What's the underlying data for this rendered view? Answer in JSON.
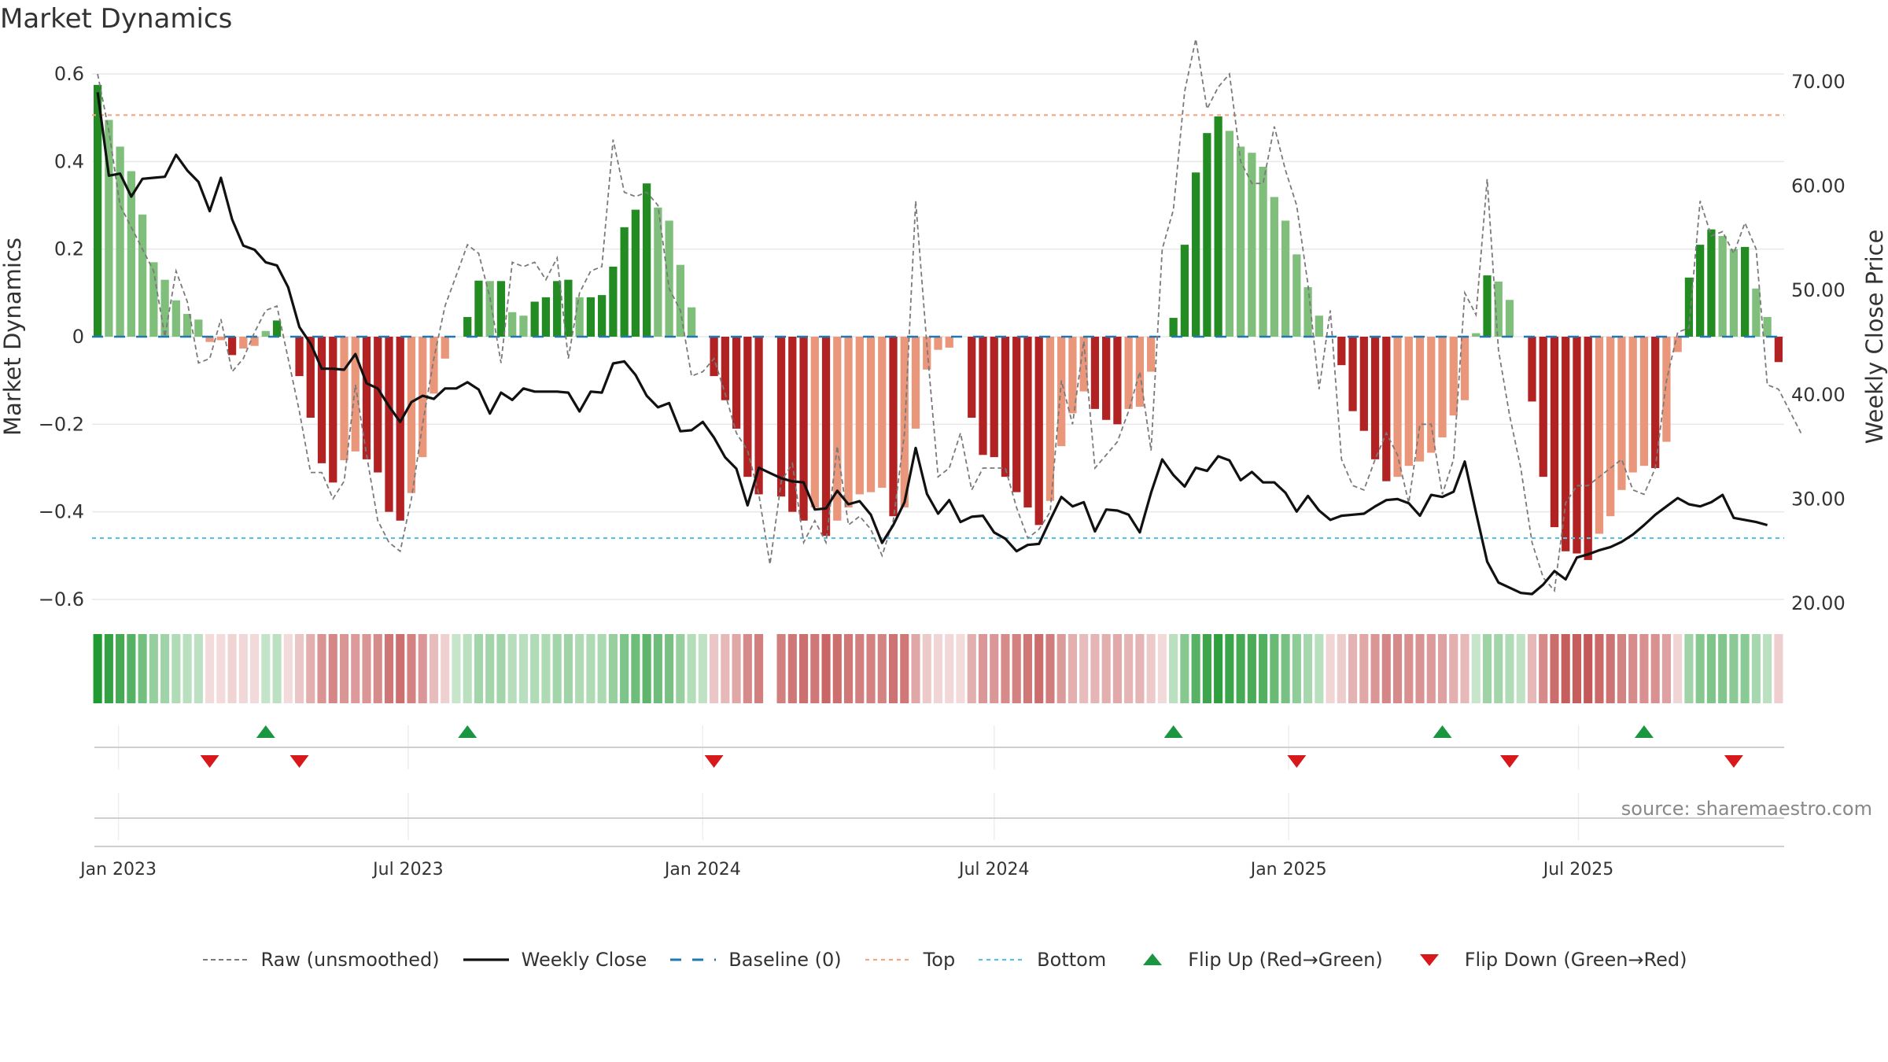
{
  "page": {
    "title": "Market Dynamics",
    "source": "source: sharemaestro.com"
  },
  "legend": [
    {
      "key": "raw",
      "label": "Raw (unsmoothed)"
    },
    {
      "key": "close",
      "label": "Weekly Close"
    },
    {
      "key": "baseline",
      "label": "Baseline (0)"
    },
    {
      "key": "top",
      "label": "Top"
    },
    {
      "key": "bottom",
      "label": "Bottom"
    },
    {
      "key": "flip_up",
      "label": "Flip Up (Red→Green)"
    },
    {
      "key": "flip_down",
      "label": "Flip Down (Green→Red)"
    }
  ],
  "colors": {
    "green_dark": "#228b22",
    "green_light": "#7fbf7b",
    "red_dark": "#b22222",
    "red_light": "#e9967a",
    "close_line": "#111111",
    "raw_line": "#7a7a7a",
    "baseline": "#1f77b4",
    "top": "#f4a582",
    "bottom": "#5bc0de",
    "flip_up": "#1a9641",
    "flip_down": "#d7191c"
  },
  "chart_data": {
    "type": "bar",
    "title": "Market Dynamics",
    "ylabel": "Market Dynamics",
    "y2label": "Weekly Close Price",
    "ylim": [
      -0.6,
      0.6
    ],
    "y2lim": [
      20,
      70
    ],
    "y_ticks": [
      "0.6",
      "0.4",
      "0.2",
      "0",
      "−0.2",
      "−0.4",
      "−0.6"
    ],
    "y2_ticks": [
      "70.00",
      "60.00",
      "50.00",
      "40.00",
      "30.00",
      "20.00"
    ],
    "x_ticks": [
      "Jan 2023",
      "Jul 2023",
      "Jan 2024",
      "Jul 2024",
      "Jan 2025",
      "Jul 2025"
    ],
    "x_start": "2022-12-19",
    "top_level": 0.506,
    "bottom_level": -0.46,
    "baseline": 0,
    "grid": true,
    "legend_position": "bottom",
    "dynamics": [
      0.575,
      0.495,
      0.434,
      0.378,
      0.279,
      0.17,
      0.13,
      0.083,
      0.052,
      0.039,
      -0.012,
      -0.008,
      -0.042,
      -0.027,
      -0.021,
      0.013,
      0.037,
      0.0,
      -0.09,
      -0.185,
      -0.289,
      -0.333,
      -0.282,
      -0.262,
      -0.28,
      -0.31,
      -0.4,
      -0.42,
      -0.357,
      -0.275,
      -0.13,
      -0.05,
      0.0,
      0.045,
      0.128,
      0.127,
      0.127,
      0.056,
      0.048,
      0.08,
      0.09,
      0.127,
      0.13,
      0.09,
      0.09,
      0.095,
      0.16,
      0.25,
      0.29,
      0.35,
      0.295,
      0.265,
      0.164,
      0.067,
      0.0,
      -0.09,
      -0.145,
      -0.21,
      -0.32,
      -0.36,
      0.0,
      -0.365,
      -0.4,
      -0.42,
      -0.39,
      -0.455,
      -0.42,
      -0.39,
      -0.36,
      -0.355,
      -0.345,
      -0.41,
      -0.39,
      -0.21,
      -0.075,
      -0.03,
      -0.025,
      0.0,
      -0.185,
      -0.27,
      -0.275,
      -0.32,
      -0.355,
      -0.39,
      -0.43,
      -0.375,
      -0.25,
      -0.175,
      -0.125,
      -0.165,
      -0.19,
      -0.2,
      -0.165,
      -0.16,
      -0.08,
      0.0,
      0.043,
      0.21,
      0.375,
      0.465,
      0.503,
      0.47,
      0.434,
      0.42,
      0.388,
      0.319,
      0.265,
      0.188,
      0.113,
      0.048,
      0.0,
      -0.065,
      -0.17,
      -0.215,
      -0.28,
      -0.33,
      -0.32,
      -0.295,
      -0.285,
      -0.265,
      -0.23,
      -0.18,
      -0.145,
      0.008,
      0.14,
      0.126,
      0.084,
      0.0,
      -0.148,
      -0.32,
      -0.435,
      -0.49,
      -0.495,
      -0.51,
      -0.45,
      -0.41,
      -0.35,
      -0.31,
      -0.295,
      -0.3,
      -0.24,
      -0.035,
      0.135,
      0.21,
      0.245,
      0.23,
      0.2,
      0.205,
      0.11,
      0.045,
      -0.058
    ],
    "raw": [
      0.6,
      0.47,
      0.3,
      0.25,
      0.2,
      0.15,
      0.0,
      0.15,
      0.08,
      -0.06,
      -0.05,
      0.04,
      -0.08,
      -0.05,
      0.01,
      0.06,
      0.07,
      -0.05,
      -0.17,
      -0.31,
      -0.31,
      -0.37,
      -0.33,
      -0.11,
      -0.27,
      -0.42,
      -0.47,
      -0.49,
      -0.37,
      -0.2,
      -0.05,
      0.07,
      0.14,
      0.21,
      0.19,
      0.09,
      -0.06,
      0.17,
      0.16,
      0.17,
      0.13,
      0.18,
      -0.05,
      0.1,
      0.15,
      0.16,
      0.45,
      0.33,
      0.32,
      0.33,
      0.3,
      0.11,
      0.06,
      -0.09,
      -0.08,
      -0.05,
      -0.13,
      -0.22,
      -0.26,
      -0.36,
      -0.52,
      -0.33,
      -0.29,
      -0.47,
      -0.42,
      -0.47,
      -0.25,
      -0.43,
      -0.41,
      -0.44,
      -0.5,
      -0.42,
      -0.22,
      0.31,
      -0.02,
      -0.32,
      -0.3,
      -0.22,
      -0.35,
      -0.3,
      -0.3,
      -0.3,
      -0.39,
      -0.46,
      -0.44,
      -0.4,
      -0.1,
      -0.2,
      -0.01,
      -0.3,
      -0.27,
      -0.24,
      -0.17,
      -0.08,
      -0.26,
      0.2,
      0.29,
      0.56,
      0.68,
      0.52,
      0.57,
      0.6,
      0.4,
      0.35,
      0.35,
      0.48,
      0.38,
      0.3,
      0.12,
      -0.12,
      0.06,
      -0.28,
      -0.34,
      -0.35,
      -0.28,
      -0.22,
      -0.27,
      -0.38,
      -0.2,
      -0.2,
      -0.36,
      -0.28,
      0.1,
      0.05,
      0.36,
      -0.03,
      -0.18,
      -0.3,
      -0.47,
      -0.55,
      -0.58,
      -0.38,
      -0.34,
      -0.34,
      -0.32,
      -0.3,
      -0.28,
      -0.35,
      -0.36,
      -0.3,
      -0.1,
      0.01,
      0.02,
      0.31,
      0.23,
      0.24,
      0.19,
      0.26,
      0.2,
      -0.11,
      -0.12,
      -0.17,
      -0.22
    ],
    "close": [
      69.0,
      61.0,
      61.2,
      59.0,
      60.7,
      60.8,
      60.9,
      63.0,
      61.5,
      60.4,
      57.6,
      60.8,
      56.8,
      54.3,
      53.9,
      52.7,
      52.4,
      50.3,
      46.5,
      44.9,
      42.5,
      42.5,
      42.4,
      43.9,
      41.1,
      40.6,
      38.9,
      37.4,
      39.3,
      39.9,
      39.6,
      40.6,
      40.6,
      41.2,
      40.5,
      38.2,
      40.2,
      39.5,
      40.6,
      40.3,
      40.3,
      40.3,
      40.2,
      38.4,
      40.3,
      40.2,
      43.0,
      43.2,
      41.9,
      39.9,
      38.8,
      39.2,
      36.5,
      36.6,
      37.4,
      35.9,
      34.0,
      32.9,
      29.4,
      33.0,
      32.5,
      32.0,
      31.7,
      31.6,
      29.0,
      29.1,
      30.8,
      29.5,
      29.8,
      28.5,
      25.8,
      27.5,
      29.7,
      34.9,
      30.5,
      28.6,
      29.9,
      27.8,
      28.3,
      28.4,
      26.8,
      26.2,
      25.0,
      25.6,
      25.7,
      28.0,
      30.2,
      29.3,
      29.7,
      26.9,
      29.0,
      28.9,
      28.5,
      26.8,
      30.6,
      33.8,
      32.3,
      31.2,
      33.0,
      32.7,
      34.1,
      33.7,
      31.8,
      32.6,
      31.6,
      31.6,
      30.6,
      28.8,
      30.3,
      28.9,
      28.0,
      28.4,
      28.5,
      28.6,
      29.3,
      29.9,
      30.0,
      29.6,
      28.4,
      30.4,
      30.2,
      30.7,
      33.6,
      28.7,
      24.0,
      22.0,
      21.5,
      21.0,
      20.9,
      21.8,
      23.1,
      22.3,
      24.4,
      24.7,
      25.1,
      25.4,
      25.9,
      26.6,
      27.5,
      28.5,
      29.3,
      30.1,
      29.5,
      29.3,
      29.7,
      30.4,
      28.2,
      28.0,
      27.8,
      27.5
    ],
    "flips_up": [
      15,
      33,
      96,
      120,
      138
    ],
    "flips_down": [
      10,
      18,
      55,
      107,
      126,
      146
    ],
    "strip_values": [
      0.575,
      0.495,
      0.434,
      0.378,
      0.279,
      0.17,
      0.13,
      0.083,
      0.052,
      0.039,
      -0.012,
      -0.008,
      -0.042,
      -0.027,
      -0.021,
      0.013,
      0.037,
      -0.005,
      -0.09,
      -0.185,
      -0.289,
      -0.333,
      -0.282,
      -0.262,
      -0.28,
      -0.31,
      -0.4,
      -0.42,
      -0.357,
      -0.275,
      -0.13,
      -0.05,
      0.01,
      0.045,
      0.128,
      0.127,
      0.127,
      0.056,
      0.048,
      0.08,
      0.09,
      0.127,
      0.13,
      0.09,
      0.09,
      0.095,
      0.16,
      0.25,
      0.29,
      0.35,
      0.295,
      0.265,
      0.164,
      0.067,
      0.03,
      -0.09,
      -0.145,
      -0.21,
      -0.32,
      -0.36,
      null,
      -0.365,
      -0.4,
      -0.42,
      -0.39,
      -0.455,
      -0.42,
      -0.39,
      -0.36,
      -0.355,
      -0.345,
      -0.41,
      -0.39,
      -0.21,
      -0.075,
      -0.03,
      -0.025,
      -0.01,
      -0.185,
      -0.27,
      -0.275,
      -0.32,
      -0.355,
      -0.39,
      -0.43,
      -0.375,
      -0.25,
      -0.175,
      -0.125,
      -0.165,
      -0.19,
      -0.2,
      -0.165,
      -0.16,
      -0.08,
      -0.02,
      0.043,
      0.21,
      0.375,
      0.465,
      0.503,
      0.47,
      0.434,
      0.42,
      0.388,
      0.319,
      0.265,
      0.188,
      0.113,
      0.048,
      -0.03,
      -0.065,
      -0.17,
      -0.215,
      -0.28,
      -0.33,
      -0.32,
      -0.295,
      -0.285,
      -0.265,
      -0.23,
      -0.18,
      -0.145,
      0.008,
      0.14,
      0.126,
      0.084,
      0.03,
      -0.148,
      -0.32,
      -0.435,
      -0.49,
      -0.495,
      -0.51,
      -0.45,
      -0.41,
      -0.35,
      -0.31,
      -0.295,
      -0.3,
      -0.24,
      -0.035,
      0.135,
      0.21,
      0.245,
      0.23,
      0.2,
      0.205,
      0.11,
      0.045,
      -0.058
    ]
  }
}
